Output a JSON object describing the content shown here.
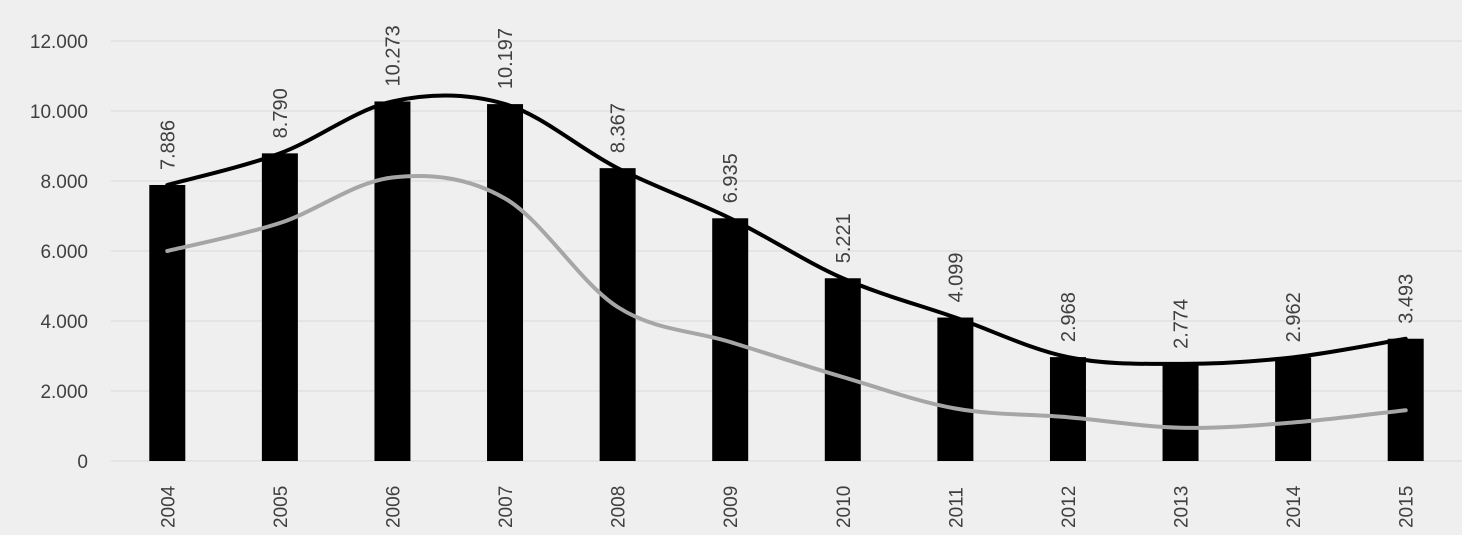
{
  "chart_data": {
    "type": "bar",
    "categories": [
      "2004",
      "2005",
      "2006",
      "2007",
      "2008",
      "2009",
      "2010",
      "2011",
      "2012",
      "2013",
      "2014",
      "2015"
    ],
    "series": [
      {
        "type": "bar",
        "values": [
          7886,
          8790,
          10273,
          10197,
          8367,
          6935,
          5221,
          4099,
          2968,
          2774,
          2962,
          3493
        ],
        "data_labels": [
          "7.886",
          "8.790",
          "10.273",
          "10.197",
          "8.367",
          "6.935",
          "5.221",
          "4.099",
          "2.968",
          "2.774",
          "2.962",
          "3.493"
        ],
        "color": "#000000"
      },
      {
        "type": "line",
        "smooth": true,
        "values": [
          7886,
          8790,
          10273,
          10197,
          8367,
          6935,
          5221,
          4099,
          2968,
          2774,
          2962,
          3493
        ],
        "color": "#000000"
      },
      {
        "type": "line",
        "smooth": true,
        "values": [
          6000,
          6800,
          8100,
          7500,
          4400,
          3400,
          2400,
          1500,
          1250,
          950,
          1100,
          1450
        ],
        "color": "#a6a6a6"
      }
    ],
    "ylim": [
      0,
      12000
    ],
    "yticks": [
      0,
      2000,
      4000,
      6000,
      8000,
      10000,
      12000
    ],
    "ytick_labels": [
      "0",
      "2.000",
      "4.000",
      "6.000",
      "8.000",
      "10.000",
      "12.000"
    ],
    "grid": true,
    "background": "#efefef"
  }
}
